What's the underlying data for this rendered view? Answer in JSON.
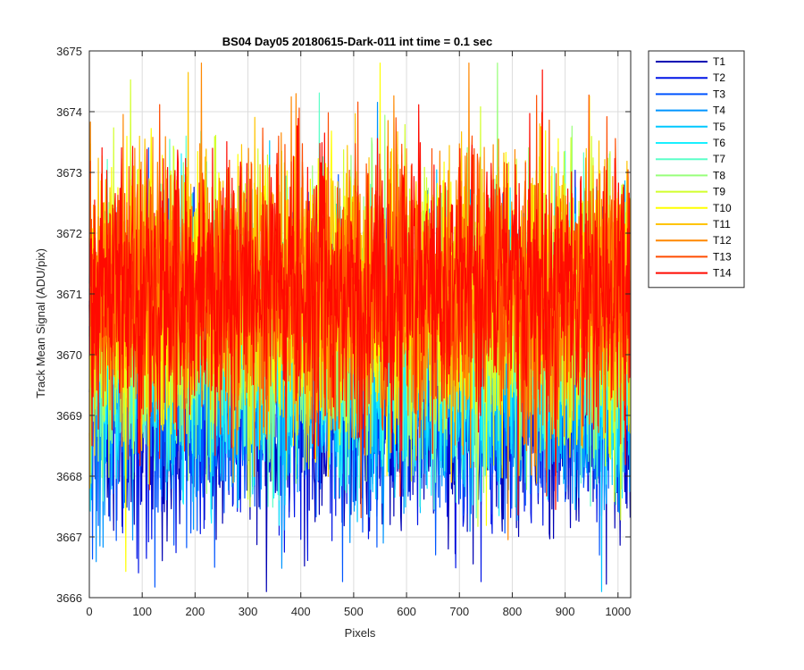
{
  "chart_data": {
    "type": "line",
    "title": "BS04 Day05 20180615-Dark-011 int time = 0.1 sec",
    "xlabel": "Pixels",
    "ylabel": "Track Mean Signal (ADU/pix)",
    "xlim": [
      0,
      1024
    ],
    "ylim": [
      3666,
      3675
    ],
    "xticks": [
      0,
      100,
      200,
      300,
      400,
      500,
      600,
      700,
      800,
      900,
      1000
    ],
    "yticks": [
      3666,
      3667,
      3668,
      3669,
      3670,
      3671,
      3672,
      3673,
      3674,
      3675
    ],
    "grid": true,
    "legend_position": "outside-top-right",
    "series": [
      {
        "name": "T1",
        "color": "#0000b3",
        "mean": 3669.2
      },
      {
        "name": "T2",
        "color": "#0014e6",
        "mean": 3669.4
      },
      {
        "name": "T3",
        "color": "#0055ff",
        "mean": 3669.6
      },
      {
        "name": "T4",
        "color": "#0095ff",
        "mean": 3669.8
      },
      {
        "name": "T5",
        "color": "#00c8ff",
        "mean": 3670.0
      },
      {
        "name": "T6",
        "color": "#19f0ff",
        "mean": 3670.2
      },
      {
        "name": "T7",
        "color": "#5cffc8",
        "mean": 3670.4
      },
      {
        "name": "T8",
        "color": "#98ff7a",
        "mean": 3670.6
      },
      {
        "name": "T9",
        "color": "#d2ff2d",
        "mean": 3670.8
      },
      {
        "name": "T10",
        "color": "#ffff00",
        "mean": 3670.9
      },
      {
        "name": "T11",
        "color": "#ffc400",
        "mean": 3671.0
      },
      {
        "name": "T12",
        "color": "#ff8800",
        "mean": 3671.0
      },
      {
        "name": "T13",
        "color": "#ff4c00",
        "mean": 3671.1
      },
      {
        "name": "T14",
        "color": "#ff0a00",
        "mean": 3671.1
      }
    ],
    "noise_std": 1.1,
    "num_pixels": 1024
  }
}
